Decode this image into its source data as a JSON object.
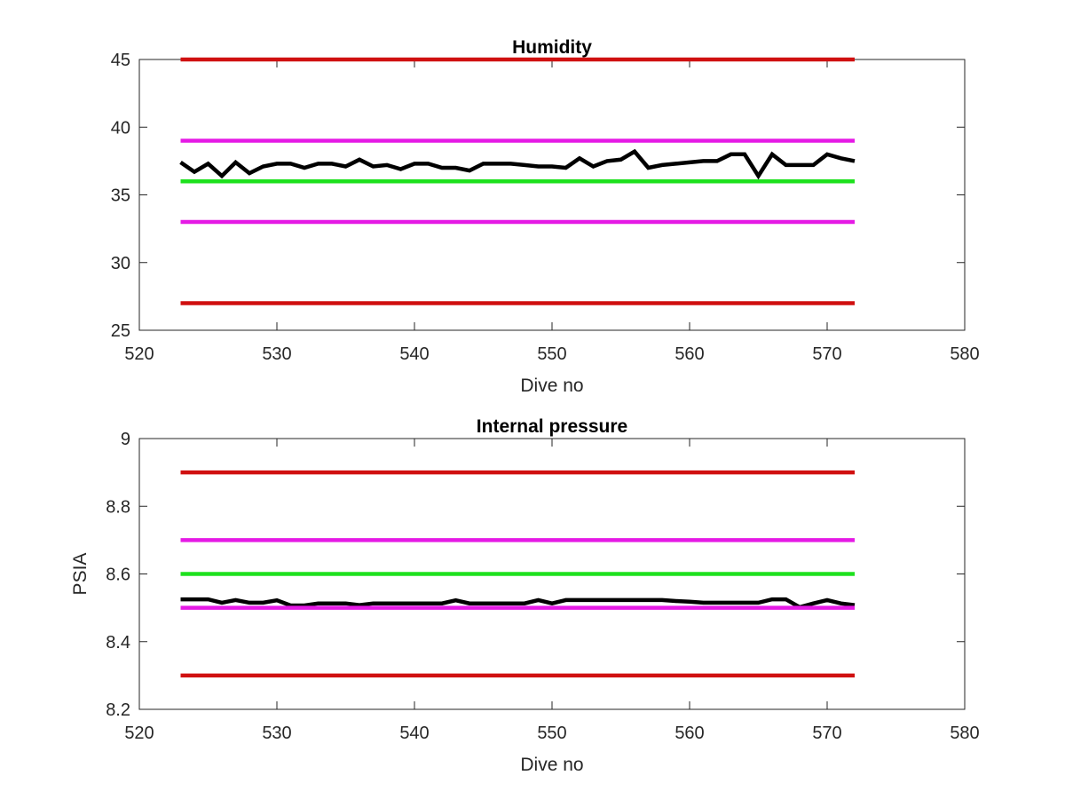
{
  "chart_data": [
    {
      "type": "line",
      "title": "Humidity",
      "xlabel": "Dive no",
      "ylabel": "",
      "xlim": [
        520,
        580
      ],
      "ylim": [
        25,
        45
      ],
      "xticks": [
        520,
        530,
        540,
        550,
        560,
        570,
        580
      ],
      "yticks": [
        25,
        30,
        35,
        40,
        45
      ],
      "grid": false,
      "series": [
        {
          "color": "#000000",
          "x": [
            523,
            524,
            525,
            526,
            527,
            528,
            529,
            530,
            531,
            532,
            533,
            534,
            535,
            536,
            537,
            538,
            539,
            540,
            541,
            542,
            543,
            544,
            545,
            546,
            547,
            548,
            549,
            550,
            551,
            552,
            553,
            554,
            555,
            556,
            557,
            558,
            559,
            560,
            561,
            562,
            563,
            564,
            565,
            566,
            567,
            568,
            569,
            570,
            571,
            572
          ],
          "y": [
            37.4,
            36.7,
            37.3,
            36.4,
            37.4,
            36.6,
            37.1,
            37.3,
            37.3,
            37.0,
            37.3,
            37.3,
            37.1,
            37.6,
            37.1,
            37.2,
            36.9,
            37.3,
            37.3,
            37.0,
            37.0,
            36.8,
            37.3,
            37.3,
            37.3,
            37.2,
            37.1,
            37.1,
            37.0,
            37.7,
            37.1,
            37.5,
            37.6,
            38.2,
            37.0,
            37.2,
            37.3,
            37.4,
            37.5,
            37.5,
            38.0,
            38.0,
            36.4,
            38.0,
            37.2,
            37.2,
            37.2,
            38.0,
            37.7,
            37.5
          ]
        },
        {
          "color": "#d01010",
          "x": [
            523,
            572
          ],
          "y": [
            45,
            45
          ]
        },
        {
          "color": "#e51ae5",
          "x": [
            523,
            572
          ],
          "y": [
            39,
            39
          ]
        },
        {
          "color": "#1ee11e",
          "x": [
            523,
            572
          ],
          "y": [
            36,
            36
          ]
        },
        {
          "color": "#e51ae5",
          "x": [
            523,
            572
          ],
          "y": [
            33,
            33
          ]
        },
        {
          "color": "#d01010",
          "x": [
            523,
            572
          ],
          "y": [
            27,
            27
          ]
        }
      ]
    },
    {
      "type": "line",
      "title": "Internal pressure",
      "xlabel": "Dive no",
      "ylabel": "PSIA",
      "xlim": [
        520,
        580
      ],
      "ylim": [
        8.2,
        9
      ],
      "xticks": [
        520,
        530,
        540,
        550,
        560,
        570,
        580
      ],
      "yticks": [
        8.2,
        8.4,
        8.6,
        8.8,
        9
      ],
      "grid": false,
      "series": [
        {
          "color": "#000000",
          "x": [
            523,
            524,
            525,
            526,
            527,
            528,
            529,
            530,
            531,
            532,
            533,
            534,
            535,
            536,
            537,
            538,
            539,
            540,
            541,
            542,
            543,
            544,
            545,
            546,
            547,
            548,
            549,
            550,
            551,
            552,
            553,
            554,
            555,
            556,
            557,
            558,
            559,
            560,
            561,
            562,
            563,
            564,
            565,
            566,
            567,
            568,
            569,
            570,
            571,
            572
          ],
          "y": [
            8.525,
            8.525,
            8.525,
            8.515,
            8.523,
            8.515,
            8.515,
            8.522,
            8.507,
            8.507,
            8.513,
            8.513,
            8.513,
            8.508,
            8.513,
            8.513,
            8.513,
            8.513,
            8.513,
            8.513,
            8.522,
            8.513,
            8.513,
            8.513,
            8.513,
            8.513,
            8.523,
            8.513,
            8.523,
            8.523,
            8.523,
            8.523,
            8.523,
            8.523,
            8.523,
            8.523,
            8.52,
            8.518,
            8.515,
            8.515,
            8.515,
            8.515,
            8.515,
            8.525,
            8.525,
            8.502,
            8.513,
            8.523,
            8.513,
            8.508
          ]
        },
        {
          "color": "#d01010",
          "x": [
            523,
            572
          ],
          "y": [
            8.9,
            8.9
          ]
        },
        {
          "color": "#e51ae5",
          "x": [
            523,
            572
          ],
          "y": [
            8.7,
            8.7
          ]
        },
        {
          "color": "#1ee11e",
          "x": [
            523,
            572
          ],
          "y": [
            8.6,
            8.6
          ]
        },
        {
          "color": "#e51ae5",
          "x": [
            523,
            572
          ],
          "y": [
            8.5,
            8.5
          ]
        },
        {
          "color": "#d01010",
          "x": [
            523,
            572
          ],
          "y": [
            8.3,
            8.3
          ]
        }
      ]
    }
  ]
}
